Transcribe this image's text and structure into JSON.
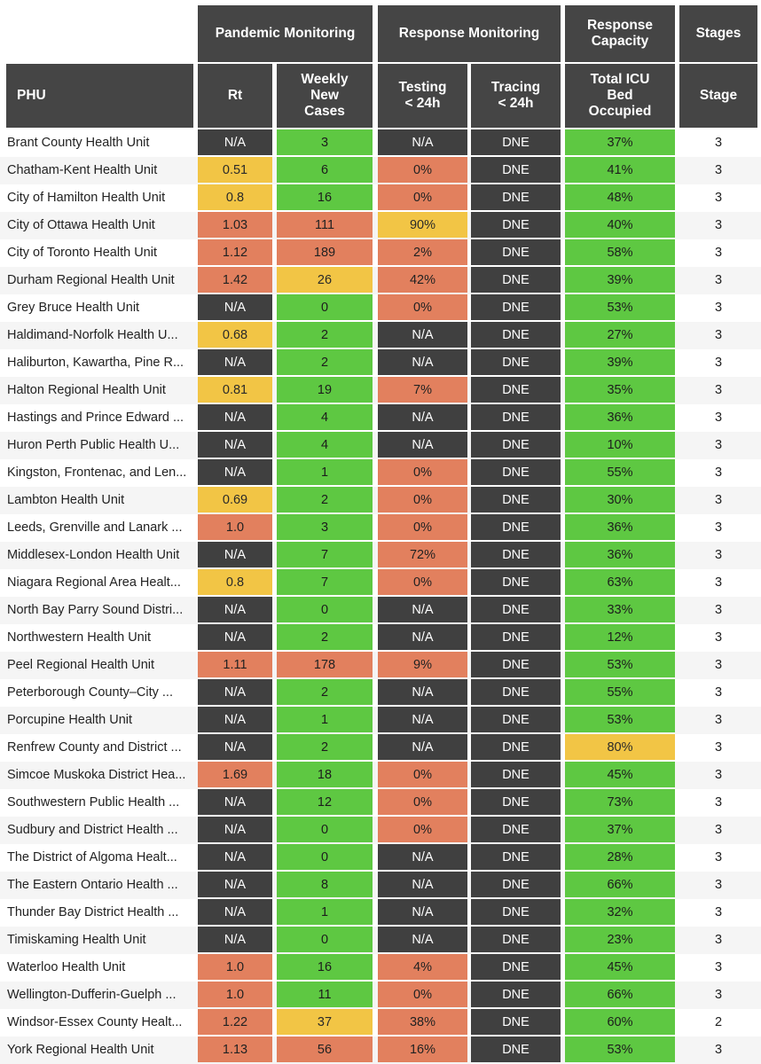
{
  "headers": {
    "group_pandemic": "Pandemic Monitoring",
    "group_response": "Response Monitoring",
    "group_capacity": "Response Capacity",
    "group_stages": "Stages",
    "col_phu": "PHU",
    "col_rt": "Rt",
    "col_cases": "Weekly New Cases",
    "col_testing": "Testing < 24h",
    "col_tracing": "Tracing < 24h",
    "col_icu": "Total ICU Bed Occupied",
    "col_stage": "Stage"
  },
  "colors": {
    "dk": "#404040",
    "gr": "#5ec842",
    "yl": "#f2c545",
    "rd": "#e2805e",
    "header": "#454545"
  },
  "chart_data": {
    "type": "table",
    "columns": [
      "PHU",
      "Rt",
      "Weekly New Cases",
      "Testing < 24h",
      "Tracing < 24h",
      "Total ICU Bed Occupied",
      "Stage"
    ],
    "rows": [
      {
        "phu": "Brant County Health Unit",
        "rt": "N/A",
        "rt_c": "dk",
        "cases": "3",
        "cases_c": "gr",
        "testing": "N/A",
        "testing_c": "dk",
        "tracing": "DNE",
        "tracing_c": "dk",
        "icu": "37%",
        "icu_c": "gr",
        "stage": "3"
      },
      {
        "phu": "Chatham-Kent Health Unit",
        "rt": "0.51",
        "rt_c": "yl",
        "cases": "6",
        "cases_c": "gr",
        "testing": "0%",
        "testing_c": "rd",
        "tracing": "DNE",
        "tracing_c": "dk",
        "icu": "41%",
        "icu_c": "gr",
        "stage": "3"
      },
      {
        "phu": "City of Hamilton Health Unit",
        "rt": "0.8",
        "rt_c": "yl",
        "cases": "16",
        "cases_c": "gr",
        "testing": "0%",
        "testing_c": "rd",
        "tracing": "DNE",
        "tracing_c": "dk",
        "icu": "48%",
        "icu_c": "gr",
        "stage": "3"
      },
      {
        "phu": "City of Ottawa Health Unit",
        "rt": "1.03",
        "rt_c": "rd",
        "cases": "111",
        "cases_c": "rd",
        "testing": "90%",
        "testing_c": "yl",
        "tracing": "DNE",
        "tracing_c": "dk",
        "icu": "40%",
        "icu_c": "gr",
        "stage": "3"
      },
      {
        "phu": "City of Toronto Health Unit",
        "rt": "1.12",
        "rt_c": "rd",
        "cases": "189",
        "cases_c": "rd",
        "testing": "2%",
        "testing_c": "rd",
        "tracing": "DNE",
        "tracing_c": "dk",
        "icu": "58%",
        "icu_c": "gr",
        "stage": "3"
      },
      {
        "phu": "Durham Regional Health Unit",
        "rt": "1.42",
        "rt_c": "rd",
        "cases": "26",
        "cases_c": "yl",
        "testing": "42%",
        "testing_c": "rd",
        "tracing": "DNE",
        "tracing_c": "dk",
        "icu": "39%",
        "icu_c": "gr",
        "stage": "3"
      },
      {
        "phu": "Grey Bruce Health Unit",
        "rt": "N/A",
        "rt_c": "dk",
        "cases": "0",
        "cases_c": "gr",
        "testing": "0%",
        "testing_c": "rd",
        "tracing": "DNE",
        "tracing_c": "dk",
        "icu": "53%",
        "icu_c": "gr",
        "stage": "3"
      },
      {
        "phu": "Haldimand-Norfolk Health U...",
        "rt": "0.68",
        "rt_c": "yl",
        "cases": "2",
        "cases_c": "gr",
        "testing": "N/A",
        "testing_c": "dk",
        "tracing": "DNE",
        "tracing_c": "dk",
        "icu": "27%",
        "icu_c": "gr",
        "stage": "3"
      },
      {
        "phu": "Haliburton, Kawartha, Pine R...",
        "rt": "N/A",
        "rt_c": "dk",
        "cases": "2",
        "cases_c": "gr",
        "testing": "N/A",
        "testing_c": "dk",
        "tracing": "DNE",
        "tracing_c": "dk",
        "icu": "39%",
        "icu_c": "gr",
        "stage": "3"
      },
      {
        "phu": "Halton Regional Health Unit",
        "rt": "0.81",
        "rt_c": "yl",
        "cases": "19",
        "cases_c": "gr",
        "testing": "7%",
        "testing_c": "rd",
        "tracing": "DNE",
        "tracing_c": "dk",
        "icu": "35%",
        "icu_c": "gr",
        "stage": "3"
      },
      {
        "phu": "Hastings and Prince Edward ...",
        "rt": "N/A",
        "rt_c": "dk",
        "cases": "4",
        "cases_c": "gr",
        "testing": "N/A",
        "testing_c": "dk",
        "tracing": "DNE",
        "tracing_c": "dk",
        "icu": "36%",
        "icu_c": "gr",
        "stage": "3"
      },
      {
        "phu": "Huron Perth Public Health U...",
        "rt": "N/A",
        "rt_c": "dk",
        "cases": "4",
        "cases_c": "gr",
        "testing": "N/A",
        "testing_c": "dk",
        "tracing": "DNE",
        "tracing_c": "dk",
        "icu": "10%",
        "icu_c": "gr",
        "stage": "3"
      },
      {
        "phu": "Kingston, Frontenac, and Len...",
        "rt": "N/A",
        "rt_c": "dk",
        "cases": "1",
        "cases_c": "gr",
        "testing": "0%",
        "testing_c": "rd",
        "tracing": "DNE",
        "tracing_c": "dk",
        "icu": "55%",
        "icu_c": "gr",
        "stage": "3"
      },
      {
        "phu": "Lambton Health Unit",
        "rt": "0.69",
        "rt_c": "yl",
        "cases": "2",
        "cases_c": "gr",
        "testing": "0%",
        "testing_c": "rd",
        "tracing": "DNE",
        "tracing_c": "dk",
        "icu": "30%",
        "icu_c": "gr",
        "stage": "3"
      },
      {
        "phu": "Leeds, Grenville and Lanark ...",
        "rt": "1.0",
        "rt_c": "rd",
        "cases": "3",
        "cases_c": "gr",
        "testing": "0%",
        "testing_c": "rd",
        "tracing": "DNE",
        "tracing_c": "dk",
        "icu": "36%",
        "icu_c": "gr",
        "stage": "3"
      },
      {
        "phu": "Middlesex-London Health Unit",
        "rt": "N/A",
        "rt_c": "dk",
        "cases": "7",
        "cases_c": "gr",
        "testing": "72%",
        "testing_c": "rd",
        "tracing": "DNE",
        "tracing_c": "dk",
        "icu": "36%",
        "icu_c": "gr",
        "stage": "3"
      },
      {
        "phu": "Niagara Regional Area Healt...",
        "rt": "0.8",
        "rt_c": "yl",
        "cases": "7",
        "cases_c": "gr",
        "testing": "0%",
        "testing_c": "rd",
        "tracing": "DNE",
        "tracing_c": "dk",
        "icu": "63%",
        "icu_c": "gr",
        "stage": "3"
      },
      {
        "phu": "North Bay Parry Sound Distri...",
        "rt": "N/A",
        "rt_c": "dk",
        "cases": "0",
        "cases_c": "gr",
        "testing": "N/A",
        "testing_c": "dk",
        "tracing": "DNE",
        "tracing_c": "dk",
        "icu": "33%",
        "icu_c": "gr",
        "stage": "3"
      },
      {
        "phu": "Northwestern Health Unit",
        "rt": "N/A",
        "rt_c": "dk",
        "cases": "2",
        "cases_c": "gr",
        "testing": "N/A",
        "testing_c": "dk",
        "tracing": "DNE",
        "tracing_c": "dk",
        "icu": "12%",
        "icu_c": "gr",
        "stage": "3"
      },
      {
        "phu": "Peel Regional Health Unit",
        "rt": "1.11",
        "rt_c": "rd",
        "cases": "178",
        "cases_c": "rd",
        "testing": "9%",
        "testing_c": "rd",
        "tracing": "DNE",
        "tracing_c": "dk",
        "icu": "53%",
        "icu_c": "gr",
        "stage": "3"
      },
      {
        "phu": "Peterborough County–City ...",
        "rt": "N/A",
        "rt_c": "dk",
        "cases": "2",
        "cases_c": "gr",
        "testing": "N/A",
        "testing_c": "dk",
        "tracing": "DNE",
        "tracing_c": "dk",
        "icu": "55%",
        "icu_c": "gr",
        "stage": "3"
      },
      {
        "phu": "Porcupine Health Unit",
        "rt": "N/A",
        "rt_c": "dk",
        "cases": "1",
        "cases_c": "gr",
        "testing": "N/A",
        "testing_c": "dk",
        "tracing": "DNE",
        "tracing_c": "dk",
        "icu": "53%",
        "icu_c": "gr",
        "stage": "3"
      },
      {
        "phu": "Renfrew County and District ...",
        "rt": "N/A",
        "rt_c": "dk",
        "cases": "2",
        "cases_c": "gr",
        "testing": "N/A",
        "testing_c": "dk",
        "tracing": "DNE",
        "tracing_c": "dk",
        "icu": "80%",
        "icu_c": "yl",
        "stage": "3"
      },
      {
        "phu": "Simcoe Muskoka District Hea...",
        "rt": "1.69",
        "rt_c": "rd",
        "cases": "18",
        "cases_c": "gr",
        "testing": "0%",
        "testing_c": "rd",
        "tracing": "DNE",
        "tracing_c": "dk",
        "icu": "45%",
        "icu_c": "gr",
        "stage": "3"
      },
      {
        "phu": "Southwestern Public Health ...",
        "rt": "N/A",
        "rt_c": "dk",
        "cases": "12",
        "cases_c": "gr",
        "testing": "0%",
        "testing_c": "rd",
        "tracing": "DNE",
        "tracing_c": "dk",
        "icu": "73%",
        "icu_c": "gr",
        "stage": "3"
      },
      {
        "phu": "Sudbury and District Health ...",
        "rt": "N/A",
        "rt_c": "dk",
        "cases": "0",
        "cases_c": "gr",
        "testing": "0%",
        "testing_c": "rd",
        "tracing": "DNE",
        "tracing_c": "dk",
        "icu": "37%",
        "icu_c": "gr",
        "stage": "3"
      },
      {
        "phu": "The District of Algoma Healt...",
        "rt": "N/A",
        "rt_c": "dk",
        "cases": "0",
        "cases_c": "gr",
        "testing": "N/A",
        "testing_c": "dk",
        "tracing": "DNE",
        "tracing_c": "dk",
        "icu": "28%",
        "icu_c": "gr",
        "stage": "3"
      },
      {
        "phu": "The Eastern Ontario Health ...",
        "rt": "N/A",
        "rt_c": "dk",
        "cases": "8",
        "cases_c": "gr",
        "testing": "N/A",
        "testing_c": "dk",
        "tracing": "DNE",
        "tracing_c": "dk",
        "icu": "66%",
        "icu_c": "gr",
        "stage": "3"
      },
      {
        "phu": "Thunder Bay District Health ...",
        "rt": "N/A",
        "rt_c": "dk",
        "cases": "1",
        "cases_c": "gr",
        "testing": "N/A",
        "testing_c": "dk",
        "tracing": "DNE",
        "tracing_c": "dk",
        "icu": "32%",
        "icu_c": "gr",
        "stage": "3"
      },
      {
        "phu": "Timiskaming Health Unit",
        "rt": "N/A",
        "rt_c": "dk",
        "cases": "0",
        "cases_c": "gr",
        "testing": "N/A",
        "testing_c": "dk",
        "tracing": "DNE",
        "tracing_c": "dk",
        "icu": "23%",
        "icu_c": "gr",
        "stage": "3"
      },
      {
        "phu": "Waterloo Health Unit",
        "rt": "1.0",
        "rt_c": "rd",
        "cases": "16",
        "cases_c": "gr",
        "testing": "4%",
        "testing_c": "rd",
        "tracing": "DNE",
        "tracing_c": "dk",
        "icu": "45%",
        "icu_c": "gr",
        "stage": "3"
      },
      {
        "phu": "Wellington-Dufferin-Guelph ...",
        "rt": "1.0",
        "rt_c": "rd",
        "cases": "11",
        "cases_c": "gr",
        "testing": "0%",
        "testing_c": "rd",
        "tracing": "DNE",
        "tracing_c": "dk",
        "icu": "66%",
        "icu_c": "gr",
        "stage": "3"
      },
      {
        "phu": "Windsor-Essex County Healt...",
        "rt": "1.22",
        "rt_c": "rd",
        "cases": "37",
        "cases_c": "yl",
        "testing": "38%",
        "testing_c": "rd",
        "tracing": "DNE",
        "tracing_c": "dk",
        "icu": "60%",
        "icu_c": "gr",
        "stage": "2"
      },
      {
        "phu": "York Regional Health Unit",
        "rt": "1.13",
        "rt_c": "rd",
        "cases": "56",
        "cases_c": "rd",
        "testing": "16%",
        "testing_c": "rd",
        "tracing": "DNE",
        "tracing_c": "dk",
        "icu": "53%",
        "icu_c": "gr",
        "stage": "3"
      }
    ]
  }
}
